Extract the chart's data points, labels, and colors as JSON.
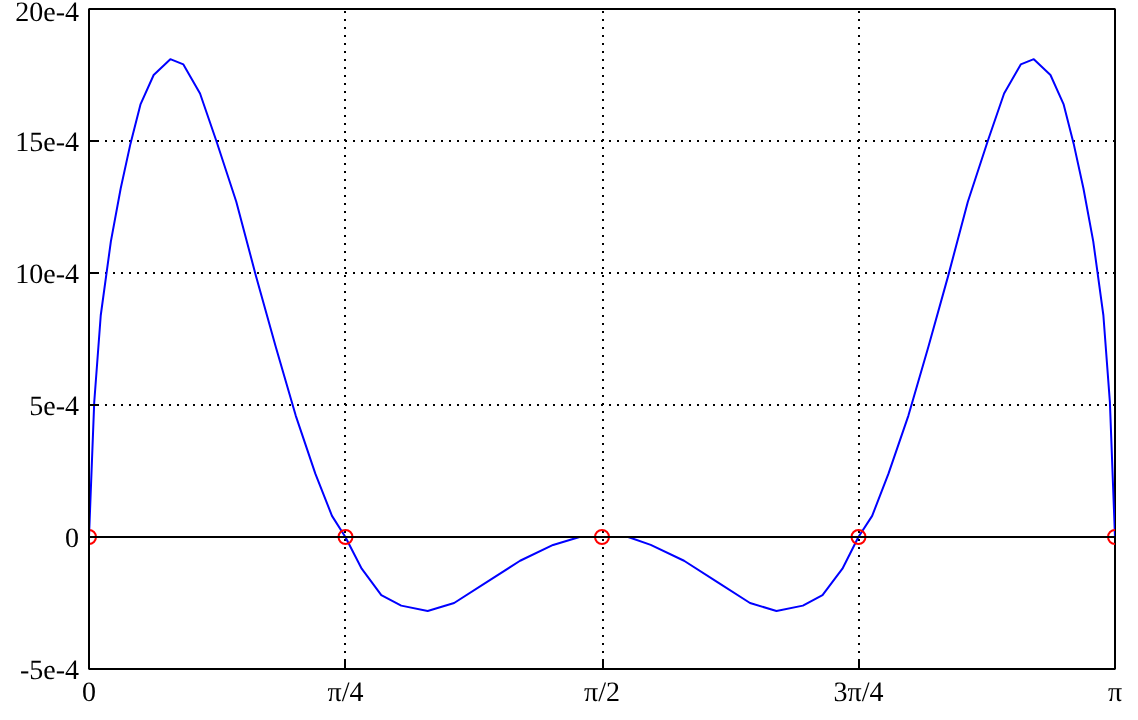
{
  "chart_data": {
    "type": "line",
    "xlim": [
      0,
      3.1416
    ],
    "ylim": [
      -0.0005,
      0.002
    ],
    "xticks": [
      0,
      {
        "value": 0.7854,
        "label": "π/4"
      },
      {
        "value": 1.5708,
        "label": "π/2"
      },
      {
        "value": 2.3562,
        "label": "3π/4"
      },
      {
        "value": 3.1416,
        "label": "π"
      }
    ],
    "yticks": [
      {
        "value": -0.0005,
        "label": "-5e-4"
      },
      0,
      {
        "value": 0.0005,
        "label": "5e-4"
      },
      {
        "value": 0.001,
        "label": "10e-4"
      },
      {
        "value": 0.0015,
        "label": "15e-4"
      },
      {
        "value": 0.002,
        "label": "20e-4"
      }
    ],
    "grid": true,
    "line_style": "solid",
    "ref_lines": [
      {
        "axis": "y",
        "value": 0,
        "color": "#000000",
        "line_style": "solid"
      }
    ],
    "series": [
      {
        "color": "#0000ff",
        "marker": "none",
        "x": [
          0,
          0.016,
          0.036,
          0.067,
          0.097,
          0.127,
          0.158,
          0.198,
          0.249,
          0.289,
          0.34,
          0.39,
          0.451,
          0.511,
          0.572,
          0.633,
          0.693,
          0.744,
          0.785,
          0.835,
          0.895,
          0.956,
          1.037,
          1.118,
          1.219,
          1.32,
          1.421,
          1.502,
          1.571,
          1.651,
          1.72,
          1.822,
          1.923,
          2.024,
          2.105,
          2.186,
          2.246,
          2.307,
          2.356,
          2.398,
          2.448,
          2.509,
          2.57,
          2.631,
          2.691,
          2.752,
          2.802,
          2.853,
          2.893,
          2.944,
          2.984,
          3.015,
          3.045,
          3.075,
          3.106,
          3.126,
          3.1416
        ],
        "values": [
          0,
          0.00051,
          0.00084,
          0.00112,
          0.00132,
          0.00149,
          0.00164,
          0.00175,
          0.00181,
          0.00179,
          0.00168,
          0.0015,
          0.00127,
          0.00099,
          0.00072,
          0.00046,
          0.00024,
          8e-05,
          0,
          -0.00012,
          -0.00022,
          -0.00026,
          -0.00028,
          -0.00025,
          -0.00017,
          -9e-05,
          -3e-05,
          0,
          0,
          0,
          -3e-05,
          -9e-05,
          -0.00017,
          -0.00025,
          -0.00028,
          -0.00026,
          -0.00022,
          -0.00012,
          0,
          8e-05,
          0.00024,
          0.00046,
          0.00072,
          0.00099,
          0.00127,
          0.0015,
          0.00168,
          0.00179,
          0.00181,
          0.00175,
          0.00164,
          0.00149,
          0.00132,
          0.00112,
          0.00084,
          0.00051,
          0
        ]
      },
      {
        "type": "scatter",
        "color": "#ff0000",
        "marker": "circle",
        "x": [
          0,
          0.7854,
          1.5708,
          2.3562,
          3.1416
        ],
        "values": [
          0,
          0,
          0,
          0,
          0
        ]
      }
    ]
  }
}
